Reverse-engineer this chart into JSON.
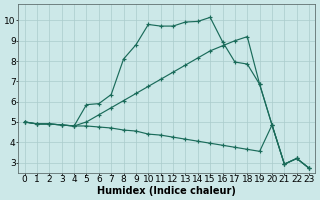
{
  "xlabel": "Humidex (Indice chaleur)",
  "bg_color": "#cce8e8",
  "grid_color": "#aacccc",
  "line_color": "#1a6b5a",
  "xlim": [
    -0.5,
    23.5
  ],
  "ylim": [
    2.5,
    10.8
  ],
  "xticks": [
    0,
    1,
    2,
    3,
    4,
    5,
    6,
    7,
    8,
    9,
    10,
    11,
    12,
    13,
    14,
    15,
    16,
    17,
    18,
    19,
    20,
    21,
    22,
    23
  ],
  "yticks": [
    3,
    4,
    5,
    6,
    7,
    8,
    9,
    10
  ],
  "line1_x": [
    0,
    1,
    2,
    3,
    4,
    5,
    6,
    7,
    8,
    9,
    10,
    11,
    12,
    13,
    14,
    15,
    16,
    17,
    18,
    19,
    20,
    21,
    22,
    23
  ],
  "line1_y": [
    5.0,
    4.9,
    4.9,
    4.85,
    4.8,
    4.8,
    4.75,
    4.7,
    4.6,
    4.55,
    4.4,
    4.35,
    4.25,
    4.15,
    4.05,
    3.95,
    3.85,
    3.75,
    3.65,
    3.55,
    4.85,
    2.92,
    3.2,
    2.72
  ],
  "line2_x": [
    0,
    1,
    2,
    3,
    4,
    5,
    6,
    7,
    8,
    9,
    10,
    11,
    12,
    13,
    14,
    15,
    16,
    17,
    18,
    19,
    20,
    21,
    22,
    23
  ],
  "line2_y": [
    5.0,
    4.9,
    4.9,
    4.85,
    4.8,
    5.0,
    5.35,
    5.7,
    6.05,
    6.4,
    6.75,
    7.1,
    7.45,
    7.8,
    8.15,
    8.5,
    8.75,
    9.0,
    9.2,
    6.85,
    4.85,
    2.92,
    3.2,
    2.72
  ],
  "line3_x": [
    0,
    1,
    2,
    3,
    4,
    5,
    6,
    7,
    8,
    9,
    10,
    11,
    12,
    13,
    14,
    15,
    16,
    17,
    18,
    19,
    20,
    21,
    22,
    23
  ],
  "line3_y": [
    5.0,
    4.9,
    4.9,
    4.85,
    4.8,
    5.85,
    5.9,
    6.35,
    8.1,
    8.8,
    9.8,
    9.72,
    9.72,
    9.92,
    9.95,
    10.15,
    8.95,
    7.95,
    7.85,
    6.85,
    4.85,
    2.92,
    3.2,
    2.72
  ],
  "font_size": 6.5
}
